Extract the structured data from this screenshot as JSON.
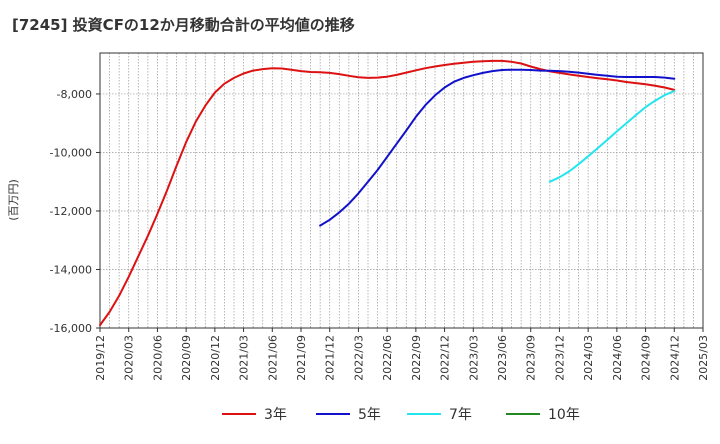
{
  "chart_data": {
    "type": "line",
    "title": "[7245]  投資CFの12か月移動合計の平均値の推移",
    "ylabel": "(百万円)",
    "xlabel": "",
    "ylim": [
      -16000,
      -6600
    ],
    "yticks": [
      -16000,
      -14000,
      -12000,
      -10000,
      -8000
    ],
    "ytick_labels": [
      "-16,000",
      "-14,000",
      "-12,000",
      "-10,000",
      "-8,000"
    ],
    "xlim": [
      "2019-12",
      "2025-03"
    ],
    "xtick_labels": [
      "2019/12",
      "2020/03",
      "2020/06",
      "2020/09",
      "2020/12",
      "2021/03",
      "2021/06",
      "2021/09",
      "2021/12",
      "2022/03",
      "2022/06",
      "2022/09",
      "2022/12",
      "2023/03",
      "2023/06",
      "2023/09",
      "2023/12",
      "2024/03",
      "2024/06",
      "2024/09",
      "2024/12",
      "2025/03"
    ],
    "grid": true,
    "legend_position": "bottom",
    "series": [
      {
        "name": "3年",
        "color": "#dd1111",
        "points": [
          [
            "2019-12",
            -15900
          ],
          [
            "2020-01",
            -15450
          ],
          [
            "2020-02",
            -14900
          ],
          [
            "2020-03",
            -14250
          ],
          [
            "2020-04",
            -13550
          ],
          [
            "2020-05",
            -12850
          ],
          [
            "2020-06",
            -12100
          ],
          [
            "2020-07",
            -11300
          ],
          [
            "2020-08",
            -10450
          ],
          [
            "2020-09",
            -9650
          ],
          [
            "2020-10",
            -8950
          ],
          [
            "2020-11",
            -8400
          ],
          [
            "2020-12",
            -7950
          ],
          [
            "2021-01",
            -7650
          ],
          [
            "2021-02",
            -7450
          ],
          [
            "2021-03",
            -7300
          ],
          [
            "2021-04",
            -7200
          ],
          [
            "2021-05",
            -7150
          ],
          [
            "2021-06",
            -7120
          ],
          [
            "2021-07",
            -7130
          ],
          [
            "2021-08",
            -7170
          ],
          [
            "2021-09",
            -7220
          ],
          [
            "2021-10",
            -7250
          ],
          [
            "2021-11",
            -7260
          ],
          [
            "2021-12",
            -7280
          ],
          [
            "2022-01",
            -7320
          ],
          [
            "2022-02",
            -7380
          ],
          [
            "2022-03",
            -7430
          ],
          [
            "2022-04",
            -7450
          ],
          [
            "2022-05",
            -7440
          ],
          [
            "2022-06",
            -7410
          ],
          [
            "2022-07",
            -7350
          ],
          [
            "2022-08",
            -7270
          ],
          [
            "2022-09",
            -7190
          ],
          [
            "2022-10",
            -7120
          ],
          [
            "2022-11",
            -7060
          ],
          [
            "2022-12",
            -7010
          ],
          [
            "2023-01",
            -6970
          ],
          [
            "2023-02",
            -6930
          ],
          [
            "2023-03",
            -6900
          ],
          [
            "2023-04",
            -6880
          ],
          [
            "2023-05",
            -6870
          ],
          [
            "2023-06",
            -6870
          ],
          [
            "2023-07",
            -6900
          ],
          [
            "2023-08",
            -6960
          ],
          [
            "2023-09",
            -7060
          ],
          [
            "2023-10",
            -7150
          ],
          [
            "2023-11",
            -7230
          ],
          [
            "2023-12",
            -7280
          ],
          [
            "2024-01",
            -7330
          ],
          [
            "2024-02",
            -7380
          ],
          [
            "2024-03",
            -7420
          ],
          [
            "2024-04",
            -7460
          ],
          [
            "2024-05",
            -7500
          ],
          [
            "2024-06",
            -7540
          ],
          [
            "2024-07",
            -7590
          ],
          [
            "2024-08",
            -7630
          ],
          [
            "2024-09",
            -7670
          ],
          [
            "2024-10",
            -7720
          ],
          [
            "2024-11",
            -7780
          ],
          [
            "2024-12",
            -7860
          ]
        ]
      },
      {
        "name": "5年",
        "color": "#1111cc",
        "points": [
          [
            "2021-11",
            -12500
          ],
          [
            "2021-12",
            -12300
          ],
          [
            "2022-01",
            -12050
          ],
          [
            "2022-02",
            -11750
          ],
          [
            "2022-03",
            -11400
          ],
          [
            "2022-04",
            -11000
          ],
          [
            "2022-05",
            -10600
          ],
          [
            "2022-06",
            -10150
          ],
          [
            "2022-07",
            -9700
          ],
          [
            "2022-08",
            -9250
          ],
          [
            "2022-09",
            -8780
          ],
          [
            "2022-10",
            -8380
          ],
          [
            "2022-11",
            -8050
          ],
          [
            "2022-12",
            -7780
          ],
          [
            "2023-01",
            -7580
          ],
          [
            "2023-02",
            -7450
          ],
          [
            "2023-03",
            -7360
          ],
          [
            "2023-04",
            -7280
          ],
          [
            "2023-05",
            -7220
          ],
          [
            "2023-06",
            -7180
          ],
          [
            "2023-07",
            -7170
          ],
          [
            "2023-08",
            -7170
          ],
          [
            "2023-09",
            -7180
          ],
          [
            "2023-10",
            -7200
          ],
          [
            "2023-11",
            -7210
          ],
          [
            "2023-12",
            -7220
          ],
          [
            "2024-01",
            -7240
          ],
          [
            "2024-02",
            -7270
          ],
          [
            "2024-03",
            -7310
          ],
          [
            "2024-04",
            -7350
          ],
          [
            "2024-05",
            -7380
          ],
          [
            "2024-06",
            -7410
          ],
          [
            "2024-07",
            -7420
          ],
          [
            "2024-08",
            -7420
          ],
          [
            "2024-09",
            -7420
          ],
          [
            "2024-10",
            -7420
          ],
          [
            "2024-11",
            -7440
          ],
          [
            "2024-12",
            -7480
          ]
        ]
      },
      {
        "name": "7年",
        "color": "#22e5ee",
        "points": [
          [
            "2023-11",
            -11000
          ],
          [
            "2023-12",
            -10850
          ],
          [
            "2024-01",
            -10650
          ],
          [
            "2024-02",
            -10400
          ],
          [
            "2024-03",
            -10130
          ],
          [
            "2024-04",
            -9850
          ],
          [
            "2024-05",
            -9570
          ],
          [
            "2024-06",
            -9280
          ],
          [
            "2024-07",
            -9000
          ],
          [
            "2024-08",
            -8720
          ],
          [
            "2024-09",
            -8450
          ],
          [
            "2024-10",
            -8230
          ],
          [
            "2024-11",
            -8040
          ],
          [
            "2024-12",
            -7900
          ]
        ]
      },
      {
        "name": "10年",
        "color": "#228822",
        "points": []
      }
    ]
  }
}
